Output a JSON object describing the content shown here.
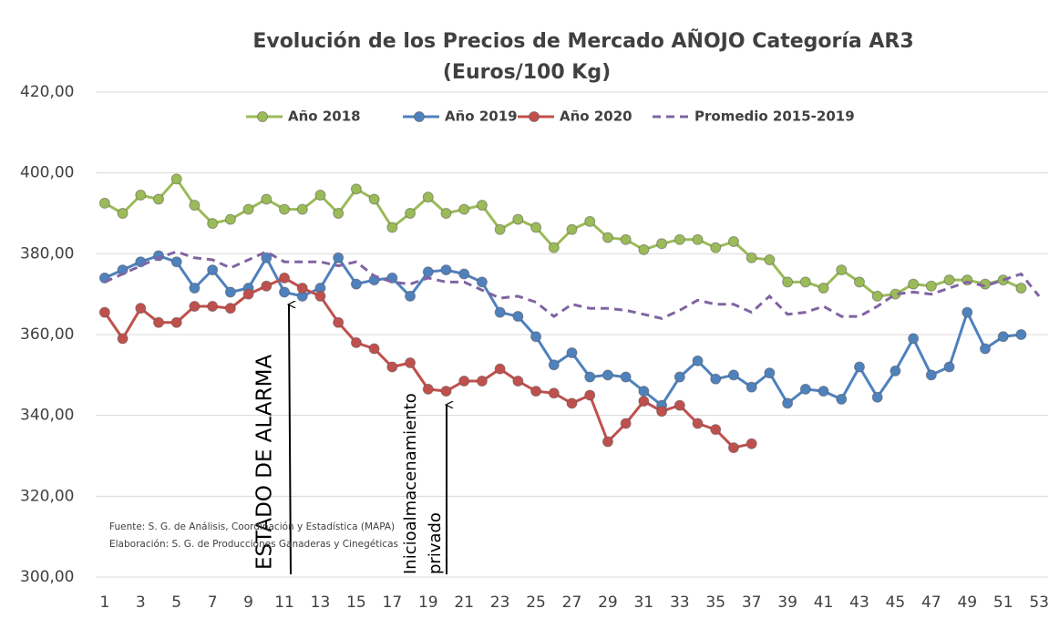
{
  "chart_data": {
    "type": "line",
    "title": "Evolución de los Precios de Mercado AÑOJO Categoría AR3",
    "subtitle": "(Euros/100 Kg)",
    "x": [
      1,
      2,
      3,
      4,
      5,
      6,
      7,
      8,
      9,
      10,
      11,
      12,
      13,
      14,
      15,
      16,
      17,
      18,
      19,
      20,
      21,
      22,
      23,
      24,
      25,
      26,
      27,
      28,
      29,
      30,
      31,
      32,
      33,
      34,
      35,
      36,
      37,
      38,
      39,
      40,
      41,
      42,
      43,
      44,
      45,
      46,
      47,
      48,
      49,
      50,
      51,
      52,
      53
    ],
    "xlim": [
      0.5,
      53.5
    ],
    "xticks": [
      1,
      3,
      5,
      7,
      9,
      11,
      13,
      15,
      17,
      19,
      21,
      23,
      25,
      27,
      29,
      31,
      33,
      35,
      37,
      39,
      41,
      43,
      45,
      47,
      49,
      51,
      53
    ],
    "ylim": [
      300,
      420
    ],
    "yticks": [
      {
        "value": 300,
        "label": "300,00"
      },
      {
        "value": 320,
        "label": "320,00"
      },
      {
        "value": 340,
        "label": "340,00"
      },
      {
        "value": 360,
        "label": "360,00"
      },
      {
        "value": 380,
        "label": "380,00"
      },
      {
        "value": 400,
        "label": "400,00"
      },
      {
        "value": 420,
        "label": "420,00"
      }
    ],
    "grid": true,
    "legend": "top",
    "series": [
      {
        "name": "Año 2018",
        "color": "#9bbb59",
        "line_style": "solid",
        "marker": "circle",
        "values": [
          392.5,
          390,
          394.5,
          393.5,
          398.5,
          392,
          387.5,
          388.5,
          391,
          393.5,
          391,
          391,
          394.5,
          390,
          396,
          393.5,
          386.5,
          390,
          394,
          390,
          391,
          392,
          386,
          388.5,
          386.5,
          381.5,
          386,
          388,
          384,
          383.5,
          381,
          382.5,
          383.5,
          383.5,
          381.5,
          383,
          379,
          378.5,
          373,
          373,
          371.5,
          376,
          373,
          369.5,
          370,
          372.5,
          372,
          373.5,
          373.5,
          372.5,
          373.5,
          371.5,
          null
        ]
      },
      {
        "name": "Año 2019",
        "color": "#4f81bd",
        "line_style": "solid",
        "marker": "circle",
        "values": [
          374,
          376,
          378,
          379.5,
          378,
          371.5,
          376,
          370.5,
          371.5,
          379,
          370.5,
          369.5,
          371.5,
          379,
          372.5,
          373.5,
          374,
          369.5,
          375.5,
          376,
          375,
          373,
          365.5,
          364.5,
          359.5,
          352.5,
          355.5,
          349.5,
          350,
          349.5,
          346,
          342.5,
          349.5,
          353.5,
          349,
          350,
          347,
          350.5,
          343,
          346.5,
          346,
          344,
          352,
          344.5,
          351,
          359,
          350,
          352,
          365.5,
          356.5,
          359.5,
          360,
          null
        ]
      },
      {
        "name": "Año 2020",
        "color": "#c0504d",
        "line_style": "solid",
        "marker": "circle",
        "values": [
          365.5,
          359,
          366.5,
          363,
          363,
          367,
          367,
          366.5,
          370,
          372,
          374,
          371.5,
          369.5,
          363,
          358,
          356.5,
          352,
          353,
          346.5,
          346,
          348.5,
          348.5,
          351.5,
          348.5,
          346,
          345.5,
          343,
          345,
          333.5,
          338,
          343.5,
          341,
          342.5,
          338,
          336.5,
          332,
          333,
          null,
          null,
          null,
          null,
          null,
          null,
          null,
          null,
          null,
          null,
          null,
          null,
          null,
          null,
          null,
          null
        ]
      },
      {
        "name": "Promedio 2015-2019",
        "color": "#8064a2",
        "line_style": "dashed",
        "marker": "none",
        "values": [
          373,
          375,
          377,
          379,
          380.5,
          379,
          378.5,
          376.5,
          378.5,
          380.5,
          378,
          378,
          378,
          377,
          378,
          374.5,
          373,
          372.5,
          374,
          373,
          373,
          371,
          369,
          369.5,
          368,
          364.5,
          367.5,
          366.5,
          366.5,
          366,
          365,
          364,
          366,
          368.5,
          367.5,
          367.5,
          365.5,
          369.5,
          365,
          365.5,
          367,
          364.5,
          364.5,
          367,
          370,
          370.5,
          370,
          371.5,
          373,
          372,
          373.5,
          375,
          369.5
        ]
      }
    ],
    "annotations": [
      {
        "lines": [
          "ESTADO DE ALARMA"
        ]
      },
      {
        "lines": [
          "Inicioalmacenamiento",
          "privado"
        ]
      }
    ],
    "notes": [
      "Fuente: S. G. de Análisis, Coordinación y Estadística (MAPA)",
      "Elaboración: S. G. de Producciones Ganaderas y Cinegéticas"
    ]
  }
}
